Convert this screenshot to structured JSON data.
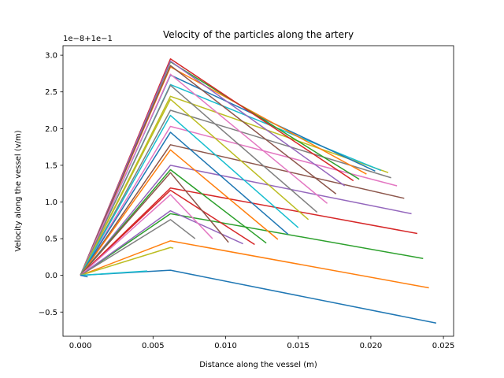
{
  "chart_data": {
    "type": "line",
    "title": "Velocity of the particles along the artery",
    "xlabel": "Distance along the vessel (m)",
    "ylabel": "Velocity along the vessel (v/m)",
    "offset_text": "1e−8+1e−1",
    "xlim": [
      -0.0012,
      0.0257
    ],
    "ylim": [
      -0.83,
      3.13
    ],
    "xticks": [
      0.0,
      0.005,
      0.01,
      0.015,
      0.02,
      0.025
    ],
    "xtick_labels": [
      "0.000",
      "0.005",
      "0.010",
      "0.015",
      "0.020",
      "0.025"
    ],
    "yticks": [
      -0.5,
      0.0,
      0.5,
      1.0,
      1.5,
      2.0,
      2.5,
      3.0
    ],
    "ytick_labels": [
      "−0.5",
      "0.0",
      "0.5",
      "1.0",
      "1.5",
      "2.0",
      "2.5",
      "3.0"
    ],
    "grid": false,
    "legend": "none",
    "colors": [
      "#1f77b4",
      "#ff7f0e",
      "#2ca02c",
      "#d62728",
      "#9467bd",
      "#8c564b",
      "#e377c2",
      "#7f7f7f",
      "#bcbd22",
      "#17becf"
    ],
    "series": [
      {
        "x": [
          0.0,
          0.0062,
          0.0245
        ],
        "y": [
          0.0,
          0.07,
          -0.65
        ]
      },
      {
        "x": [
          0.0,
          0.0062,
          0.024
        ],
        "y": [
          0.0,
          0.47,
          -0.17
        ]
      },
      {
        "x": [
          0.0,
          0.0062,
          0.0236
        ],
        "y": [
          0.0,
          0.84,
          0.23
        ]
      },
      {
        "x": [
          0.0,
          0.0062,
          0.0232
        ],
        "y": [
          0.0,
          1.19,
          0.57
        ]
      },
      {
        "x": [
          0.0,
          0.0062,
          0.0228
        ],
        "y": [
          0.0,
          1.5,
          0.84
        ]
      },
      {
        "x": [
          0.0,
          0.0062,
          0.0223
        ],
        "y": [
          0.0,
          1.78,
          1.05
        ]
      },
      {
        "x": [
          0.0,
          0.0062,
          0.0218
        ],
        "y": [
          0.0,
          2.03,
          1.22
        ]
      },
      {
        "x": [
          0.0,
          0.0062,
          0.0214
        ],
        "y": [
          0.0,
          2.25,
          1.33
        ]
      },
      {
        "x": [
          0.0,
          0.0062,
          0.0212
        ],
        "y": [
          0.0,
          2.44,
          1.4
        ]
      },
      {
        "x": [
          0.0,
          0.0062,
          0.0207
        ],
        "y": [
          0.0,
          2.6,
          1.43
        ]
      },
      {
        "x": [
          0.0,
          0.0062,
          0.0203
        ],
        "y": [
          0.0,
          2.73,
          1.42
        ]
      },
      {
        "x": [
          0.0,
          0.0062,
          0.0197
        ],
        "y": [
          0.0,
          2.84,
          1.38
        ]
      },
      {
        "x": [
          0.0,
          0.0062,
          0.0192
        ],
        "y": [
          0.0,
          2.91,
          1.31
        ]
      },
      {
        "x": [
          0.0,
          0.0062,
          0.0188
        ],
        "y": [
          0.0,
          2.95,
          1.29
        ]
      },
      {
        "x": [
          0.0,
          0.0062,
          0.0182
        ],
        "y": [
          0.0,
          2.92,
          1.22
        ]
      },
      {
        "x": [
          0.0,
          0.0062,
          0.0176
        ],
        "y": [
          0.0,
          2.86,
          1.11
        ]
      },
      {
        "x": [
          0.0,
          0.0062,
          0.017
        ],
        "y": [
          0.0,
          2.74,
          0.98
        ]
      },
      {
        "x": [
          0.0,
          0.0062,
          0.0163
        ],
        "y": [
          0.0,
          2.59,
          0.86
        ]
      },
      {
        "x": [
          0.0,
          0.0062,
          0.0157
        ],
        "y": [
          0.0,
          2.4,
          0.76
        ]
      },
      {
        "x": [
          0.0,
          0.0062,
          0.015
        ],
        "y": [
          0.0,
          2.18,
          0.65
        ]
      },
      {
        "x": [
          0.0,
          0.0062,
          0.0143
        ],
        "y": [
          0.0,
          1.95,
          0.56
        ]
      },
      {
        "x": [
          0.0,
          0.0062,
          0.0136
        ],
        "y": [
          0.0,
          1.71,
          0.49
        ]
      },
      {
        "x": [
          0.0,
          0.0062,
          0.0128
        ],
        "y": [
          0.0,
          1.44,
          0.44
        ]
      },
      {
        "x": [
          0.0,
          0.0062,
          0.012
        ],
        "y": [
          0.0,
          1.16,
          0.42
        ]
      },
      {
        "x": [
          0.0,
          0.0062,
          0.0112
        ],
        "y": [
          0.0,
          0.88,
          0.43
        ]
      },
      {
        "x": [
          0.0,
          0.0062,
          0.0102
        ],
        "y": [
          0.0,
          1.4,
          0.45
        ]
      },
      {
        "x": [
          0.0,
          0.0062,
          0.0091
        ],
        "y": [
          0.0,
          1.1,
          0.5
        ]
      },
      {
        "x": [
          0.0,
          0.0062,
          0.0079
        ],
        "y": [
          0.0,
          0.76,
          0.5
        ]
      },
      {
        "x": [
          0.0,
          0.0062,
          0.0064
        ],
        "y": [
          0.0,
          0.38,
          0.37
        ]
      },
      {
        "x": [
          0.0,
          0.0046
        ],
        "y": [
          0.0,
          0.06
        ]
      },
      {
        "x": [
          0.0,
          0.0005
        ],
        "y": [
          0.0,
          -0.02
        ]
      }
    ]
  }
}
